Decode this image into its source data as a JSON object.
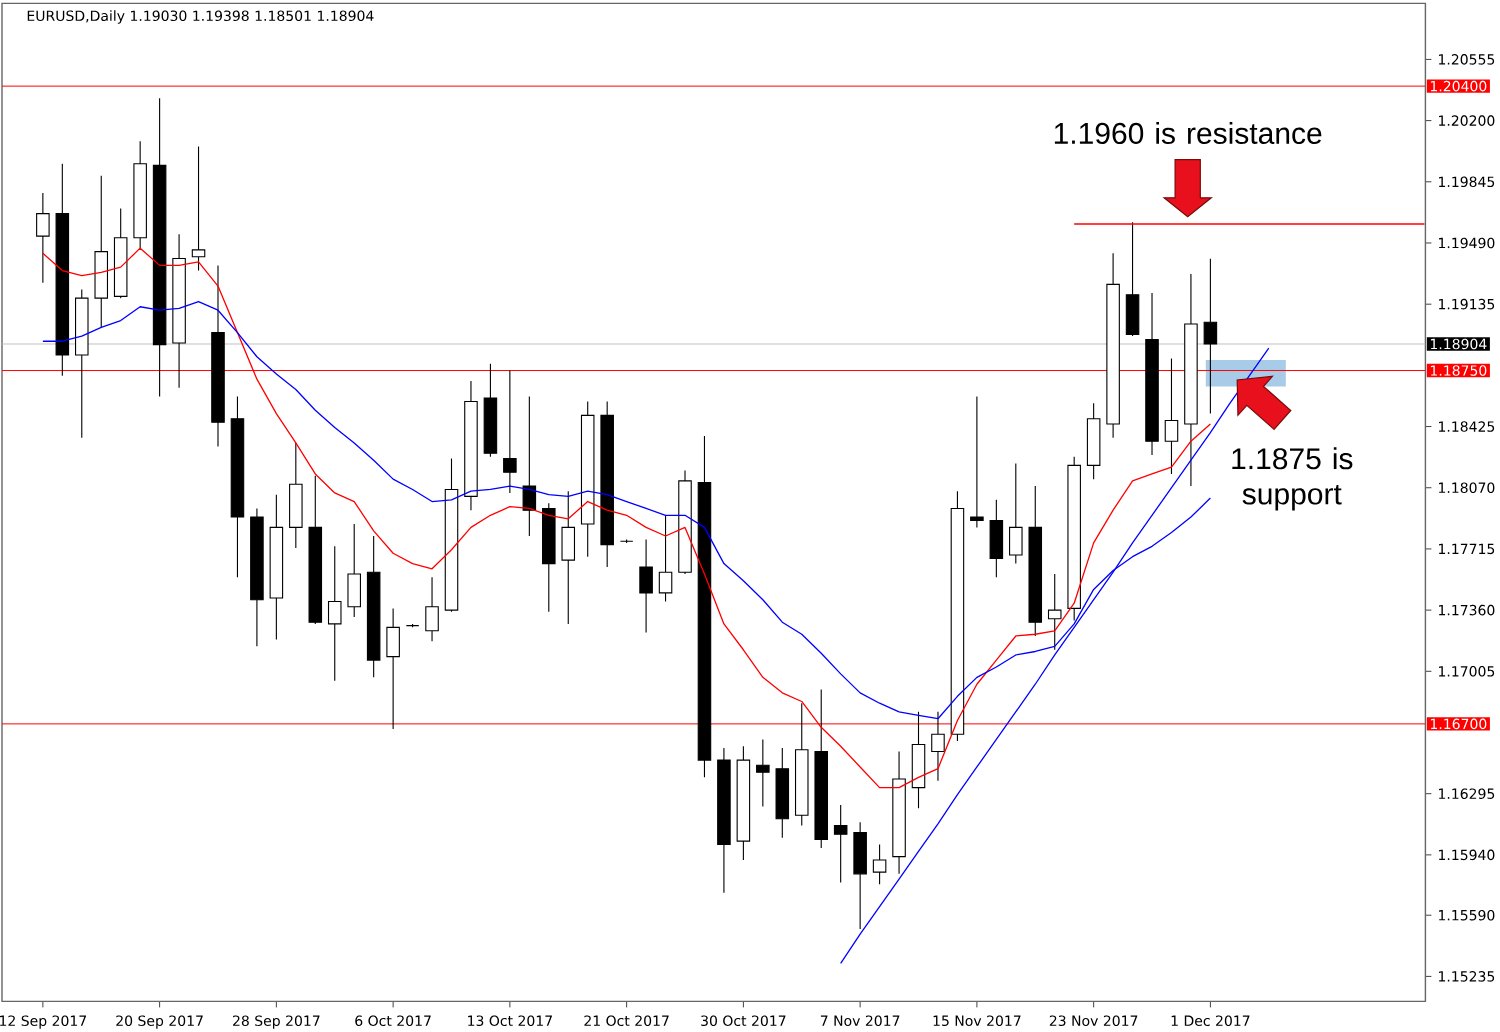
{
  "chart_data": {
    "type": "candlestick",
    "title": "EURUSD,Daily 1.19030 1.19398 1.18501 1.18904",
    "categories": [
      "12 Sep 2017",
      null,
      null,
      null,
      null,
      null,
      "20 Sep 2017",
      null,
      null,
      null,
      null,
      null,
      "28 Sep 2017",
      null,
      null,
      null,
      null,
      null,
      "6 Oct 2017",
      null,
      null,
      null,
      null,
      null,
      "13 Oct 2017",
      null,
      null,
      null,
      null,
      null,
      "21 Oct 2017",
      null,
      null,
      null,
      null,
      null,
      "30 Oct 2017",
      null,
      null,
      null,
      null,
      null,
      "7 Nov 2017",
      null,
      null,
      null,
      null,
      null,
      "15 Nov 2017",
      null,
      null,
      null,
      null,
      null,
      "23 Nov 2017",
      null,
      null,
      null,
      null,
      null,
      "1 Dec 2017",
      null,
      null,
      null,
      null,
      null,
      null,
      null,
      null,
      null,
      null,
      null
    ],
    "ohlc": [
      [
        1.1953,
        1.1978,
        1.1926,
        1.1966
      ],
      [
        1.1966,
        1.1995,
        1.1872,
        1.1884
      ],
      [
        1.1884,
        1.1922,
        1.1836,
        1.1917
      ],
      [
        1.1917,
        1.1988,
        1.19,
        1.1944
      ],
      [
        1.1918,
        1.1969,
        1.1917,
        1.1952
      ],
      [
        1.1952,
        1.2008,
        1.1946,
        1.1995
      ],
      [
        1.1994,
        1.2033,
        1.186,
        1.189
      ],
      [
        1.1891,
        1.1954,
        1.1865,
        1.194
      ],
      [
        1.1941,
        1.2005,
        1.1933,
        1.1945
      ],
      [
        1.1897,
        1.1936,
        1.1831,
        1.1845
      ],
      [
        1.1847,
        1.186,
        1.1755,
        1.179
      ],
      [
        1.179,
        1.1795,
        1.1715,
        1.1742
      ],
      [
        1.1743,
        1.1803,
        1.1719,
        1.1784
      ],
      [
        1.1784,
        1.1833,
        1.1772,
        1.1809
      ],
      [
        1.1784,
        1.1814,
        1.1728,
        1.1729
      ],
      [
        1.1728,
        1.1773,
        1.1695,
        1.1741
      ],
      [
        1.1738,
        1.1786,
        1.1732,
        1.1757
      ],
      [
        1.1758,
        1.1779,
        1.1697,
        1.1707
      ],
      [
        1.1709,
        1.1737,
        1.1667,
        1.1726
      ],
      [
        1.1727,
        1.1728,
        1.1726,
        1.1727
      ],
      [
        1.1724,
        1.1755,
        1.1718,
        1.1738
      ],
      [
        1.1736,
        1.1824,
        1.1735,
        1.1806
      ],
      [
        1.1802,
        1.1869,
        1.1794,
        1.1857
      ],
      [
        1.1859,
        1.1879,
        1.1825,
        1.1827
      ],
      [
        1.1824,
        1.1875,
        1.1804,
        1.1816
      ],
      [
        1.1808,
        1.186,
        1.1779,
        1.1794
      ],
      [
        1.1795,
        1.1798,
        1.1735,
        1.1763
      ],
      [
        1.1765,
        1.1805,
        1.1728,
        1.1784
      ],
      [
        1.1786,
        1.1857,
        1.1767,
        1.1849
      ],
      [
        1.1849,
        1.1857,
        1.1761,
        1.1774
      ],
      [
        1.1776,
        1.1777,
        1.1775,
        1.1776
      ],
      [
        1.1761,
        1.1777,
        1.1723,
        1.1746
      ],
      [
        1.1746,
        1.1791,
        1.1741,
        1.1758
      ],
      [
        1.1758,
        1.1817,
        1.1757,
        1.1811
      ],
      [
        1.181,
        1.1837,
        1.1639,
        1.1649
      ],
      [
        1.1649,
        1.1656,
        1.1572,
        1.16
      ],
      [
        1.1602,
        1.1657,
        1.1591,
        1.1649
      ],
      [
        1.1646,
        1.1661,
        1.1622,
        1.1642
      ],
      [
        1.1644,
        1.1656,
        1.1604,
        1.1615
      ],
      [
        1.1617,
        1.1682,
        1.1611,
        1.1655
      ],
      [
        1.1654,
        1.169,
        1.1598,
        1.1603
      ],
      [
        1.1611,
        1.1623,
        1.1578,
        1.1606
      ],
      [
        1.1607,
        1.1613,
        1.1551,
        1.1583
      ],
      [
        1.1584,
        1.16,
        1.1577,
        1.1591
      ],
      [
        1.1593,
        1.1654,
        1.1583,
        1.1638
      ],
      [
        1.1633,
        1.1677,
        1.1621,
        1.1658
      ],
      [
        1.1654,
        1.1677,
        1.1637,
        1.1664
      ],
      [
        1.1664,
        1.1805,
        1.166,
        1.1795
      ],
      [
        1.179,
        1.186,
        1.1784,
        1.1788
      ],
      [
        1.1788,
        1.18,
        1.1755,
        1.1766
      ],
      [
        1.1768,
        1.1821,
        1.1763,
        1.1784
      ],
      [
        1.1784,
        1.1808,
        1.1721,
        1.1729
      ],
      [
        1.1731,
        1.1757,
        1.1713,
        1.1736
      ],
      [
        1.1737,
        1.1825,
        1.173,
        1.182
      ],
      [
        1.182,
        1.1856,
        1.1812,
        1.1847
      ],
      [
        1.1844,
        1.1943,
        1.1836,
        1.1925
      ],
      [
        1.1919,
        1.1961,
        1.1895,
        1.1896
      ],
      [
        1.1893,
        1.192,
        1.1826,
        1.1834
      ],
      [
        1.1834,
        1.1882,
        1.1815,
        1.1846
      ],
      [
        1.1844,
        1.1931,
        1.1808,
        1.1902
      ],
      [
        1.1903,
        1.19398,
        1.18501,
        1.18904
      ],
      null,
      null,
      null,
      null,
      null,
      null,
      null,
      null,
      null,
      null,
      null
    ],
    "series": [
      {
        "type": "line",
        "color": "#ff0000",
        "values": [
          1.1943,
          1.1933,
          1.193,
          1.1932,
          1.1935,
          1.1946,
          1.1936,
          1.1936,
          1.1938,
          1.1924,
          1.1897,
          1.187,
          1.185,
          1.1833,
          1.1815,
          1.1804,
          1.1799,
          1.1782,
          1.1769,
          1.1763,
          1.176,
          1.1771,
          1.1784,
          1.1791,
          1.1796,
          1.1795,
          1.1791,
          1.1789,
          1.1799,
          1.1794,
          1.1791,
          1.1784,
          1.1779,
          1.1784,
          1.1757,
          1.1728,
          1.1713,
          1.1697,
          1.1688,
          1.1683,
          1.1668,
          1.1657,
          1.1645,
          1.1633,
          1.1633,
          1.1639,
          1.1644,
          1.1672,
          1.1693,
          1.1707,
          1.1721,
          1.1722,
          1.1724,
          1.174,
          1.1775,
          1.1794,
          1.1811,
          1.1815,
          1.1819,
          1.1834,
          1.1844,
          null,
          null,
          null,
          null,
          null,
          null,
          null,
          null,
          null,
          null,
          null
        ]
      },
      {
        "type": "line",
        "color": "#0000ff",
        "values": [
          1.1892,
          1.1892,
          1.1895,
          1.19,
          1.1904,
          1.1912,
          1.191,
          1.1911,
          1.1915,
          1.191,
          1.1897,
          1.1883,
          1.1873,
          1.1864,
          1.1852,
          1.1842,
          1.1833,
          1.1823,
          1.1812,
          1.1806,
          1.1799,
          1.18,
          1.1805,
          1.1806,
          1.1808,
          1.1806,
          1.1803,
          1.1802,
          1.1805,
          1.1803,
          1.1799,
          1.1795,
          1.1791,
          1.1791,
          1.1784,
          1.1763,
          1.1753,
          1.1742,
          1.1729,
          1.1722,
          1.1711,
          1.1699,
          1.1688,
          1.1682,
          1.1677,
          1.1675,
          1.1673,
          1.1686,
          1.1697,
          1.1703,
          1.171,
          1.1712,
          1.1715,
          1.1728,
          1.1748,
          1.1759,
          1.1767,
          1.1773,
          1.1781,
          1.179,
          1.1801,
          null,
          null,
          null,
          null,
          null,
          null,
          null,
          null,
          null,
          null,
          null
        ]
      },
      {
        "type": "line",
        "color": "#0000ff",
        "values": [
          null,
          null,
          null,
          null,
          null,
          null,
          null,
          null,
          null,
          null,
          null,
          null,
          null,
          null,
          null,
          null,
          null,
          null,
          null,
          null,
          null,
          null,
          null,
          null,
          null,
          null,
          null,
          null,
          null,
          null,
          null,
          null,
          null,
          null,
          null,
          null,
          null,
          null,
          null,
          null,
          null,
          1.1531,
          1.1548,
          1.1564,
          1.158,
          1.1596,
          1.1612,
          1.1629,
          1.1645,
          1.1661,
          1.1677,
          1.1693,
          1.171,
          1.1726,
          1.1742,
          1.1758,
          1.1775,
          1.1791,
          1.1807,
          1.1823,
          1.1839,
          1.1856,
          1.1872,
          1.1888,
          null,
          null,
          null,
          null,
          null,
          null,
          null,
          null
        ]
      },
      {
        "type": "line",
        "color": "#ff0000",
        "values": [
          null,
          null,
          null,
          null,
          null,
          null,
          null,
          null,
          null,
          null,
          null,
          null,
          null,
          null,
          null,
          null,
          null,
          null,
          null,
          null,
          null,
          null,
          null,
          null,
          null,
          null,
          null,
          null,
          null,
          null,
          null,
          null,
          null,
          null,
          null,
          null,
          null,
          null,
          null,
          null,
          null,
          null,
          null,
          null,
          null,
          null,
          null,
          null,
          null,
          null,
          null,
          null,
          null,
          1.196,
          1.196,
          1.196,
          1.196,
          1.196,
          1.196,
          1.196,
          1.196,
          1.196,
          1.196,
          1.196,
          1.196,
          1.196,
          1.196,
          1.196,
          1.196,
          1.196,
          1.196,
          1.196
        ]
      }
    ],
    "ylim": [
      1.1509,
      1.2088
    ],
    "yticks": [
      1.20555,
      {
        "value": 1.202,
        "label": "1.20200"
      },
      1.19845,
      {
        "value": 1.1949,
        "label": "1.19490"
      },
      1.19135,
      1.18425,
      {
        "value": 1.1807,
        "label": "1.18070"
      },
      1.17715,
      {
        "value": 1.1736,
        "label": "1.17360"
      },
      1.17005,
      1.16295,
      {
        "value": 1.1594,
        "label": "1.15940"
      },
      {
        "value": 1.1559,
        "label": "1.15590"
      },
      1.15235
    ],
    "ref_lines": [
      {
        "axis": "y",
        "value": 1.204,
        "label": "1.20400",
        "color": "#ff0000"
      },
      {
        "axis": "y",
        "value": 1.18904,
        "label": "1.18904",
        "color": "#c0c0c0"
      },
      {
        "axis": "y",
        "value": 1.1875,
        "label": "1.18750",
        "color": "#ff0000"
      },
      {
        "axis": "y",
        "value": 1.167,
        "label": "1.16700",
        "color": "#ff0000"
      }
    ],
    "annotations": [
      {
        "text": "1.1960 is resistance",
        "y": 1.196
      },
      {
        "text": "1.1875 is support",
        "x": "1 Dec 2017",
        "y": 1.1875
      }
    ]
  }
}
